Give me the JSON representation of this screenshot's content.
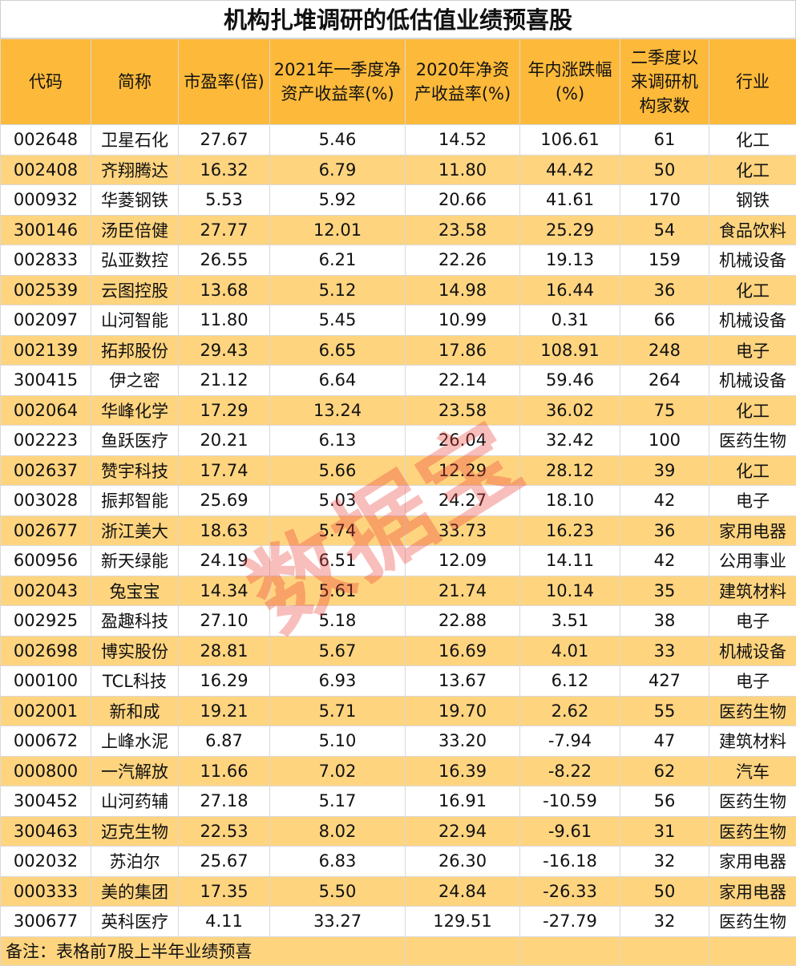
{
  "title": "机构扎堆调研的低估值业绩预喜股",
  "watermark": "数据宝",
  "colors": {
    "header": "#FDB93A",
    "alt_row": "#FFD47F",
    "watermark": "#EB463C"
  },
  "chart_data": {
    "type": "table",
    "title": "机构扎堆调研的低估值业绩预喜股",
    "columns": [
      "代码",
      "简称",
      "市盈率(倍)",
      "2021年一季度净资产收益率(%)",
      "2020年净资产收益率(%)",
      "年内涨跌幅(%)",
      "二季度以来调研机构家数",
      "行业"
    ],
    "rows": [
      [
        "002648",
        "卫星石化",
        "27.67",
        "5.46",
        "14.52",
        "106.61",
        "61",
        "化工"
      ],
      [
        "002408",
        "齐翔腾达",
        "16.32",
        "6.79",
        "11.80",
        "44.42",
        "50",
        "化工"
      ],
      [
        "000932",
        "华菱钢铁",
        "5.53",
        "5.92",
        "20.66",
        "41.61",
        "170",
        "钢铁"
      ],
      [
        "300146",
        "汤臣倍健",
        "27.77",
        "12.01",
        "23.58",
        "25.29",
        "54",
        "食品饮料"
      ],
      [
        "002833",
        "弘亚数控",
        "26.55",
        "6.21",
        "22.26",
        "19.13",
        "159",
        "机械设备"
      ],
      [
        "002539",
        "云图控股",
        "13.68",
        "5.12",
        "14.98",
        "16.44",
        "36",
        "化工"
      ],
      [
        "002097",
        "山河智能",
        "11.80",
        "5.45",
        "10.99",
        "0.31",
        "66",
        "机械设备"
      ],
      [
        "002139",
        "拓邦股份",
        "29.43",
        "6.65",
        "17.86",
        "108.91",
        "248",
        "电子"
      ],
      [
        "300415",
        "伊之密",
        "21.12",
        "6.64",
        "22.14",
        "59.46",
        "264",
        "机械设备"
      ],
      [
        "002064",
        "华峰化学",
        "17.29",
        "13.24",
        "23.58",
        "36.02",
        "75",
        "化工"
      ],
      [
        "002223",
        "鱼跃医疗",
        "20.21",
        "6.13",
        "26.04",
        "32.42",
        "100",
        "医药生物"
      ],
      [
        "002637",
        "赞宇科技",
        "17.74",
        "5.66",
        "12.29",
        "28.12",
        "39",
        "化工"
      ],
      [
        "003028",
        "振邦智能",
        "25.69",
        "5.03",
        "24.27",
        "18.10",
        "42",
        "电子"
      ],
      [
        "002677",
        "浙江美大",
        "18.63",
        "5.74",
        "33.73",
        "16.23",
        "36",
        "家用电器"
      ],
      [
        "600956",
        "新天绿能",
        "24.19",
        "6.51",
        "12.09",
        "14.11",
        "42",
        "公用事业"
      ],
      [
        "002043",
        "兔宝宝",
        "14.34",
        "5.61",
        "21.74",
        "10.14",
        "35",
        "建筑材料"
      ],
      [
        "002925",
        "盈趣科技",
        "27.10",
        "5.18",
        "22.88",
        "3.51",
        "38",
        "电子"
      ],
      [
        "002698",
        "博实股份",
        "28.81",
        "5.67",
        "16.69",
        "4.01",
        "33",
        "机械设备"
      ],
      [
        "000100",
        "TCL科技",
        "16.29",
        "6.93",
        "13.67",
        "6.12",
        "427",
        "电子"
      ],
      [
        "002001",
        "新和成",
        "19.21",
        "5.71",
        "19.70",
        "2.62",
        "55",
        "医药生物"
      ],
      [
        "000672",
        "上峰水泥",
        "6.87",
        "5.10",
        "33.20",
        "-7.94",
        "47",
        "建筑材料"
      ],
      [
        "000800",
        "一汽解放",
        "11.66",
        "7.02",
        "16.39",
        "-8.22",
        "62",
        "汽车"
      ],
      [
        "300452",
        "山河药辅",
        "27.18",
        "5.17",
        "16.91",
        "-10.59",
        "56",
        "医药生物"
      ],
      [
        "300463",
        "迈克生物",
        "22.53",
        "8.02",
        "22.94",
        "-9.61",
        "31",
        "医药生物"
      ],
      [
        "002032",
        "苏泊尔",
        "25.67",
        "6.83",
        "26.30",
        "-16.18",
        "32",
        "家用电器"
      ],
      [
        "000333",
        "美的集团",
        "17.35",
        "5.50",
        "24.84",
        "-26.33",
        "50",
        "家用电器"
      ],
      [
        "300677",
        "英科医疗",
        "4.11",
        "33.27",
        "129.51",
        "-27.79",
        "32",
        "医药生物"
      ]
    ],
    "footnote": "备注：表格前7股上半年业绩预喜"
  }
}
